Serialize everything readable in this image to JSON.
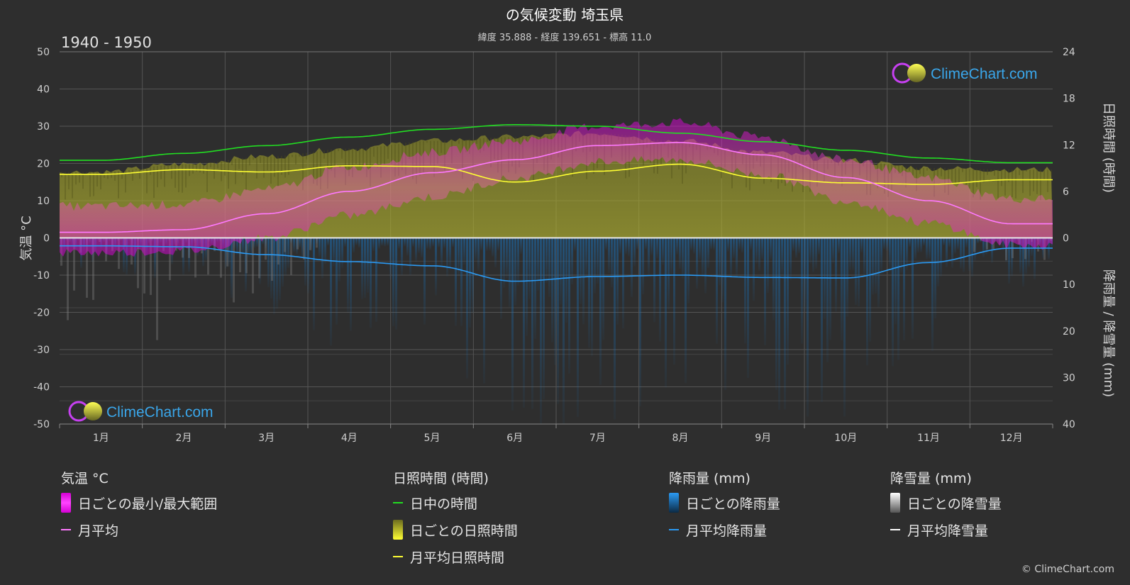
{
  "header": {
    "title": "の気候変動 埼玉県",
    "subtitle": "緯度 35.888 - 経度 139.651 - 標高 11.0",
    "period": "1940 - 1950"
  },
  "brand": {
    "name": "ClimeChart.com",
    "copyright": "© ClimeChart.com"
  },
  "colors": {
    "background": "#2e2e2e",
    "temp_range": "#d400d4",
    "temp_mean": "#ff79ff",
    "daylight": "#22dd22",
    "sunshine": "#c9c93a",
    "sunshine_mean": "#ffff33",
    "rain": "#1a6fb5",
    "rain_mean": "#2b9af3",
    "snow": "#cccccc",
    "snow_mean": "#ffffff"
  },
  "chart_data": {
    "type": "line",
    "months": [
      "1月",
      "2月",
      "3月",
      "4月",
      "5月",
      "6月",
      "7月",
      "8月",
      "9月",
      "10月",
      "11月",
      "12月"
    ],
    "axes": {
      "left": {
        "label": "気温 °C",
        "min": -50,
        "max": 50,
        "ticks": [
          50,
          40,
          30,
          20,
          10,
          0,
          -10,
          -20,
          -30,
          -40,
          -50
        ]
      },
      "right_top": {
        "label": "日照時間 (時間)",
        "min": 0,
        "max": 24,
        "ticks": [
          24,
          18,
          12,
          6,
          0
        ]
      },
      "right_bottom": {
        "label": "降雨量 / 降雪量 (mm)",
        "min": 0,
        "max": 40,
        "ticks": [
          10,
          20,
          30,
          40
        ]
      }
    },
    "grid": true,
    "series": [
      {
        "key": "daylight",
        "unit": "hours",
        "values": [
          10.0,
          10.9,
          11.9,
          13.0,
          14.0,
          14.6,
          14.4,
          13.5,
          12.4,
          11.3,
          10.3,
          9.7
        ]
      },
      {
        "key": "sunshine_mean",
        "unit": "hours",
        "values": [
          8.2,
          8.8,
          8.5,
          9.3,
          9.2,
          7.2,
          8.6,
          9.5,
          7.7,
          7.1,
          6.9,
          7.5
        ]
      },
      {
        "key": "sunshine_daily",
        "unit": "hours",
        "values": [
          8.5,
          9.5,
          10.5,
          11.5,
          12.5,
          13.0,
          13.5,
          12.5,
          11.0,
          10.0,
          9.0,
          8.8
        ]
      },
      {
        "key": "temp_mean",
        "unit": "°C",
        "values": [
          1.5,
          2.2,
          6.5,
          12.5,
          17.5,
          21.0,
          24.8,
          25.6,
          22.3,
          16.2,
          10.0,
          3.8
        ]
      },
      {
        "key": "temp_max",
        "unit": "°C",
        "values": [
          8.5,
          9.0,
          13.0,
          19.0,
          23.0,
          26.0,
          30.0,
          31.0,
          27.0,
          21.0,
          16.0,
          10.5
        ]
      },
      {
        "key": "temp_min",
        "unit": "°C",
        "values": [
          -4.0,
          -3.5,
          0.0,
          6.0,
          11.0,
          16.0,
          20.5,
          21.0,
          17.0,
          10.0,
          4.0,
          -2.0
        ]
      },
      {
        "key": "rain_mean",
        "unit": "mm",
        "values": [
          1.7,
          1.9,
          3.6,
          5.1,
          6.0,
          9.3,
          8.3,
          8.0,
          8.5,
          8.6,
          5.3,
          2.2
        ]
      },
      {
        "key": "snow_mean",
        "unit": "mm",
        "values": [
          0.3,
          0.4,
          0.2,
          0.0,
          0.0,
          0.0,
          0.0,
          0.0,
          0.0,
          0.0,
          0.0,
          0.1
        ]
      }
    ]
  },
  "legend": {
    "temperature": {
      "title": "気温 °C",
      "items": [
        {
          "label": "日ごとの最小/最大範囲",
          "icon": "range-swatch"
        },
        {
          "label": "月平均",
          "icon": "line-swatch"
        }
      ]
    },
    "sunshine": {
      "title": "日照時間 (時間)",
      "items": [
        {
          "label": "日中の時間",
          "icon": "line-swatch"
        },
        {
          "label": "日ごとの日照時間",
          "icon": "range-swatch"
        },
        {
          "label": "月平均日照時間",
          "icon": "line-swatch"
        }
      ]
    },
    "rain": {
      "title": "降雨量 (mm)",
      "items": [
        {
          "label": "日ごとの降雨量",
          "icon": "range-swatch"
        },
        {
          "label": "月平均降雨量",
          "icon": "line-swatch"
        }
      ]
    },
    "snow": {
      "title": "降雪量 (mm)",
      "items": [
        {
          "label": "日ごとの降雪量",
          "icon": "range-swatch"
        },
        {
          "label": "月平均降雪量",
          "icon": "line-swatch"
        }
      ]
    }
  }
}
